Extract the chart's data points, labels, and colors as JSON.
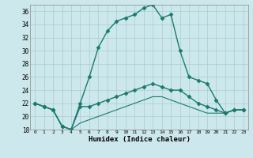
{
  "xlabel": "Humidex (Indice chaleur)",
  "background_color": "#cce8ec",
  "grid_color": "#aacccc",
  "line_color": "#1a7a6e",
  "ylim": [
    18,
    37
  ],
  "xlim": [
    -0.5,
    23.5
  ],
  "yticks": [
    18,
    20,
    22,
    24,
    26,
    28,
    30,
    32,
    34,
    36
  ],
  "xticks": [
    0,
    1,
    2,
    3,
    4,
    5,
    6,
    7,
    8,
    9,
    10,
    11,
    12,
    13,
    14,
    15,
    16,
    17,
    18,
    19,
    20,
    21,
    22,
    23
  ],
  "series": [
    {
      "x": [
        0,
        1,
        2,
        3,
        4,
        5,
        6,
        7,
        8,
        9,
        10,
        11,
        12,
        13,
        14,
        15,
        16,
        17,
        18,
        19,
        20,
        21,
        22,
        23
      ],
      "y": [
        22.0,
        21.5,
        21.0,
        18.5,
        18.0,
        22.0,
        26.0,
        30.5,
        33.0,
        34.5,
        35.0,
        35.5,
        36.5,
        37.0,
        35.0,
        35.5,
        30.0,
        26.0,
        25.5,
        25.0,
        22.5,
        20.5,
        21.0,
        21.0
      ],
      "marker": "D",
      "markersize": 2.5,
      "linewidth": 1.0,
      "linestyle": "-"
    },
    {
      "x": [
        0,
        1,
        2,
        3,
        4,
        5,
        6,
        7,
        8,
        9,
        10,
        11,
        12,
        13,
        14,
        15,
        16,
        17,
        18,
        19,
        20,
        21,
        22,
        23
      ],
      "y": [
        22.0,
        21.5,
        21.0,
        18.5,
        18.0,
        21.5,
        21.5,
        22.0,
        22.5,
        23.0,
        23.5,
        24.0,
        24.5,
        25.0,
        24.5,
        24.0,
        24.0,
        23.0,
        22.0,
        21.5,
        21.0,
        20.5,
        21.0,
        21.0
      ],
      "marker": "D",
      "markersize": 2.5,
      "linewidth": 1.0,
      "linestyle": "-"
    },
    {
      "x": [
        0,
        1,
        2,
        3,
        4,
        5,
        6,
        7,
        8,
        9,
        10,
        11,
        12,
        13,
        14,
        15,
        16,
        17,
        18,
        19,
        20,
        21,
        22,
        23
      ],
      "y": [
        22.0,
        21.5,
        21.0,
        18.5,
        18.0,
        19.0,
        19.5,
        20.0,
        20.5,
        21.0,
        21.5,
        22.0,
        22.5,
        23.0,
        23.0,
        22.5,
        22.0,
        21.5,
        21.0,
        20.5,
        20.5,
        20.5,
        21.0,
        21.0
      ],
      "marker": null,
      "markersize": 0,
      "linewidth": 0.8,
      "linestyle": "-"
    }
  ]
}
